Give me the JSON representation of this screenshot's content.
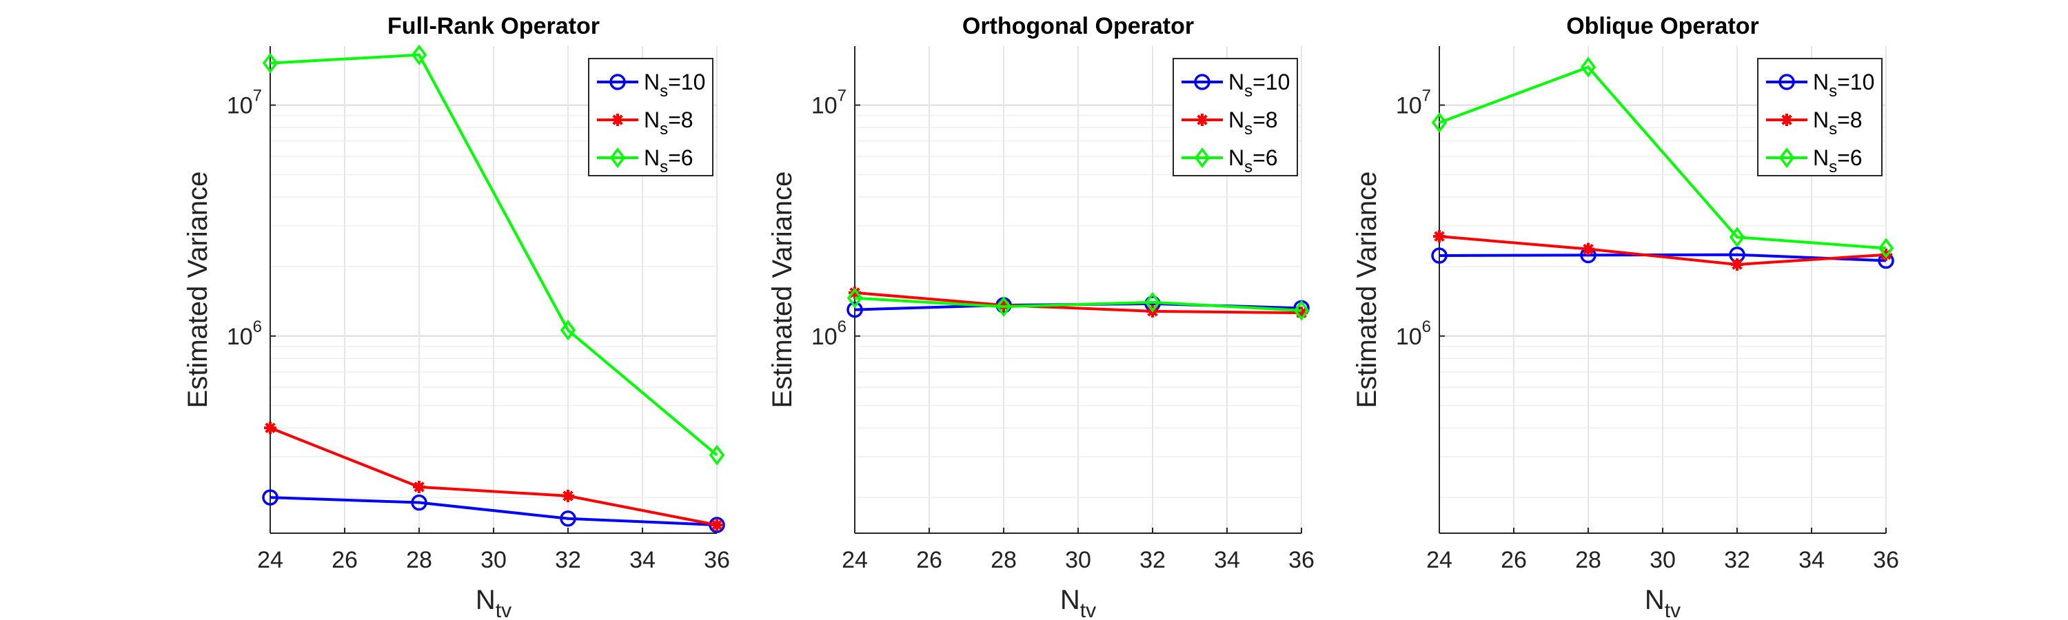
{
  "chart_data": [
    {
      "type": "line",
      "title": "Full-Rank Operator",
      "xlabel": "N",
      "xlabel_sub": "tv",
      "ylabel": "Estimated Variance",
      "yscale": "log",
      "grid": true,
      "legend_position": "top-right",
      "xlim": [
        24,
        36
      ],
      "ylim": [
        140000,
        18000000
      ],
      "xticks": [
        24,
        26,
        28,
        30,
        32,
        34,
        36
      ],
      "ytick_labels": [
        {
          "base": "10",
          "exp": "6",
          "value": 1000000
        },
        {
          "base": "10",
          "exp": "7",
          "value": 10000000
        }
      ],
      "x": [
        24,
        28,
        32,
        36
      ],
      "series": [
        {
          "name": "N",
          "name_sub": "s",
          "name_suffix": "=10",
          "color": "#0000ff",
          "marker": "circle",
          "values": [
            200000,
            190000,
            162000,
            152000
          ]
        },
        {
          "name": "N",
          "name_sub": "s",
          "name_suffix": "=8",
          "color": "#ff0000",
          "marker": "asterisk",
          "values": [
            400000,
            222000,
            203000,
            152000
          ]
        },
        {
          "name": "N",
          "name_sub": "s",
          "name_suffix": "=6",
          "color": "#00ff00",
          "marker": "diamond",
          "values": [
            15200000,
            16500000,
            1060000,
            305000
          ]
        }
      ]
    },
    {
      "type": "line",
      "title": "Orthogonal Operator",
      "xlabel": "N",
      "xlabel_sub": "tv",
      "ylabel": "Estimated Variance",
      "yscale": "log",
      "grid": true,
      "legend_position": "top-right",
      "xlim": [
        24,
        36
      ],
      "ylim": [
        140000,
        18000000
      ],
      "xticks": [
        24,
        26,
        28,
        30,
        32,
        34,
        36
      ],
      "ytick_labels": [
        {
          "base": "10",
          "exp": "6",
          "value": 1000000
        },
        {
          "base": "10",
          "exp": "7",
          "value": 10000000
        }
      ],
      "x": [
        24,
        28,
        32,
        36
      ],
      "series": [
        {
          "name": "N",
          "name_sub": "s",
          "name_suffix": "=10",
          "color": "#0000ff",
          "marker": "circle",
          "values": [
            1300000,
            1360000,
            1380000,
            1320000
          ]
        },
        {
          "name": "N",
          "name_sub": "s",
          "name_suffix": "=8",
          "color": "#ff0000",
          "marker": "asterisk",
          "values": [
            1540000,
            1360000,
            1280000,
            1260000
          ]
        },
        {
          "name": "N",
          "name_sub": "s",
          "name_suffix": "=6",
          "color": "#00ff00",
          "marker": "diamond",
          "values": [
            1460000,
            1340000,
            1400000,
            1290000
          ]
        }
      ]
    },
    {
      "type": "line",
      "title": "Oblique Operator",
      "xlabel": "N",
      "xlabel_sub": "tv",
      "ylabel": "Estimated Variance",
      "yscale": "log",
      "grid": true,
      "legend_position": "top-right",
      "xlim": [
        24,
        36
      ],
      "ylim": [
        140000,
        18000000
      ],
      "xticks": [
        24,
        26,
        28,
        30,
        32,
        34,
        36
      ],
      "ytick_labels": [
        {
          "base": "10",
          "exp": "6",
          "value": 1000000
        },
        {
          "base": "10",
          "exp": "7",
          "value": 10000000
        }
      ],
      "x": [
        24,
        28,
        32,
        36
      ],
      "series": [
        {
          "name": "N",
          "name_sub": "s",
          "name_suffix": "=10",
          "color": "#0000ff",
          "marker": "circle",
          "values": [
            2230000,
            2240000,
            2250000,
            2120000
          ]
        },
        {
          "name": "N",
          "name_sub": "s",
          "name_suffix": "=8",
          "color": "#ff0000",
          "marker": "asterisk",
          "values": [
            2700000,
            2380000,
            2040000,
            2250000
          ]
        },
        {
          "name": "N",
          "name_sub": "s",
          "name_suffix": "=6",
          "color": "#00ff00",
          "marker": "diamond",
          "values": [
            8400000,
            14600000,
            2680000,
            2400000
          ]
        }
      ]
    }
  ]
}
